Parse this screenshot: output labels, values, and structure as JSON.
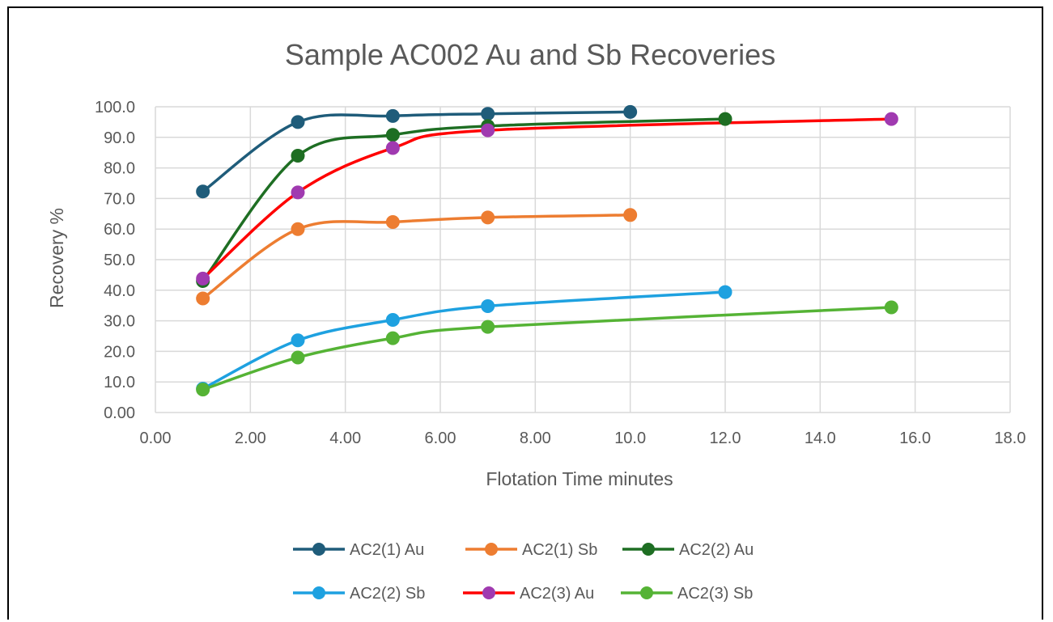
{
  "chart_data": {
    "type": "line",
    "title": "Sample AC002 Au and Sb Recoveries",
    "xlabel": "Flotation Time minutes",
    "ylabel": "Recovery %",
    "xlim": [
      0,
      18
    ],
    "ylim": [
      0,
      100
    ],
    "x_ticks": [
      "0.00",
      "2.00",
      "4.00",
      "6.00",
      "8.00",
      "10.0",
      "12.0",
      "14.0",
      "16.0",
      "18.0"
    ],
    "y_ticks": [
      "0.00",
      "10.0",
      "20.0",
      "30.0",
      "40.0",
      "50.0",
      "60.0",
      "70.0",
      "80.0",
      "90.0",
      "100.0"
    ],
    "grid": "vertical-and-horizontal",
    "legend_position": "bottom",
    "series": [
      {
        "name": "AC2(1) Au",
        "color": "#1f5c7a",
        "x": [
          1,
          3,
          5,
          7,
          10
        ],
        "y": [
          72.3,
          95.0,
          97.0,
          97.7,
          98.3
        ]
      },
      {
        "name": "AC2(1) Sb",
        "color": "#ed7d31",
        "x": [
          1,
          3,
          5,
          7,
          10
        ],
        "y": [
          37.3,
          60.0,
          62.3,
          63.8,
          64.6
        ]
      },
      {
        "name": "AC2(2) Au",
        "color": "#1e6e23",
        "x": [
          1,
          3,
          5,
          7,
          12
        ],
        "y": [
          43.0,
          84.0,
          90.8,
          93.7,
          96.0
        ]
      },
      {
        "name": "AC2(2) Sb",
        "color": "#1ea1e0",
        "x": [
          1,
          3,
          5,
          7,
          12
        ],
        "y": [
          7.8,
          23.6,
          30.3,
          34.8,
          39.4
        ]
      },
      {
        "name": "AC2(3) Au",
        "color": "#ff0000",
        "markerColor": "#a03ab0",
        "x": [
          1,
          3,
          5,
          7,
          15.5
        ],
        "y": [
          43.8,
          72.0,
          86.5,
          92.3,
          96.0
        ]
      },
      {
        "name": "AC2(3) Sb",
        "color": "#55b335",
        "x": [
          1,
          3,
          5,
          7,
          15.5
        ],
        "y": [
          7.5,
          18.0,
          24.3,
          28.0,
          34.4
        ]
      }
    ]
  }
}
